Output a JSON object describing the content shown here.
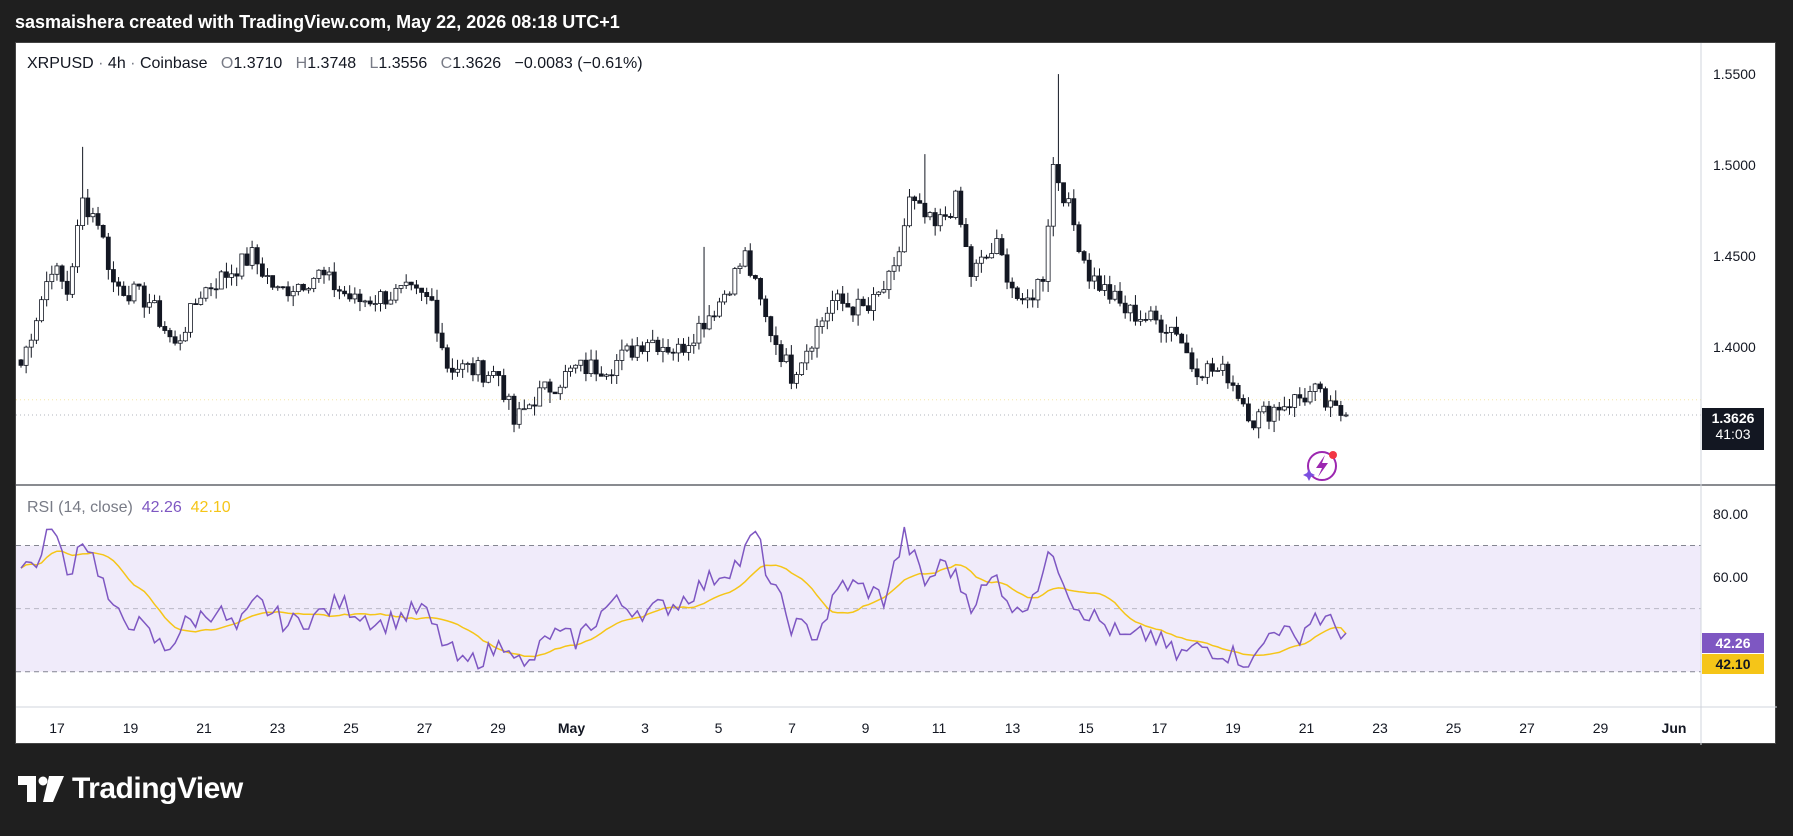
{
  "header": {
    "text": "sasmaishera created with TradingView.com, May 22, 2026 08:18 UTC+1"
  },
  "legend": {
    "symbol": "XRPUSD",
    "interval": "4h",
    "exchange": "Coinbase",
    "open_label": "O",
    "open": "1.3710",
    "high_label": "H",
    "high": "1.3748",
    "low_label": "L",
    "low": "1.3556",
    "close_label": "C",
    "close": "1.3626",
    "change": "−0.0083 (−0.61%)"
  },
  "rsi_legend": {
    "label": "RSI (14, close)",
    "value": "42.26",
    "ma": "42.10"
  },
  "price_tag": {
    "price": "1.3626",
    "countdown": "41:03"
  },
  "rsi_tags": {
    "rsi": "42.26",
    "ma": "42.10"
  },
  "brand": {
    "name": "TradingView"
  },
  "colors": {
    "up": "#ffffff",
    "down": "#131722",
    "wick": "#131722",
    "rsi_line": "#7e57c2",
    "rsi_ma": "#f5c518",
    "rsi_band": "#f0ebfa",
    "price_tag_bg": "#131722",
    "rsi_tag_bg": "#7e57c2",
    "ma_tag_bg": "#f5c518"
  },
  "chart_data": [
    {
      "type": "candlestick",
      "title": "",
      "ylim": [
        1.334,
        1.555
      ],
      "y_ticks": [
        "1.5500",
        "1.5000",
        "1.4500",
        "1.4000"
      ],
      "x_ticks": [
        "17",
        "19",
        "21",
        "23",
        "25",
        "27",
        "29",
        "May",
        "3",
        "5",
        "7",
        "9",
        "11",
        "13",
        "15",
        "17",
        "19",
        "21",
        "23",
        "25",
        "27",
        "29",
        "Jun"
      ],
      "last_close": 1.3626,
      "anchors": [
        [
          0,
          1.39
        ],
        [
          6,
          1.445
        ],
        [
          9,
          1.43
        ],
        [
          12,
          1.48
        ],
        [
          15,
          1.47
        ],
        [
          18,
          1.435
        ],
        [
          25,
          1.425
        ],
        [
          30,
          1.4
        ],
        [
          35,
          1.43
        ],
        [
          45,
          1.45
        ],
        [
          50,
          1.43
        ],
        [
          58,
          1.44
        ],
        [
          65,
          1.425
        ],
        [
          75,
          1.43
        ],
        [
          80,
          1.425
        ],
        [
          83,
          1.39
        ],
        [
          93,
          1.385
        ],
        [
          96,
          1.358
        ],
        [
          100,
          1.372
        ],
        [
          108,
          1.388
        ],
        [
          115,
          1.39
        ],
        [
          122,
          1.405
        ],
        [
          128,
          1.398
        ],
        [
          136,
          1.425
        ],
        [
          141,
          1.45
        ],
        [
          145,
          1.415
        ],
        [
          150,
          1.385
        ],
        [
          158,
          1.425
        ],
        [
          165,
          1.42
        ],
        [
          170,
          1.44
        ],
        [
          173,
          1.48
        ],
        [
          178,
          1.465
        ],
        [
          182,
          1.48
        ],
        [
          185,
          1.44
        ],
        [
          190,
          1.455
        ],
        [
          195,
          1.42
        ],
        [
          199,
          1.44
        ],
        [
          201,
          1.5
        ],
        [
          203,
          1.485
        ],
        [
          208,
          1.44
        ],
        [
          215,
          1.42
        ],
        [
          225,
          1.41
        ],
        [
          228,
          1.39
        ],
        [
          235,
          1.385
        ],
        [
          240,
          1.36
        ],
        [
          245,
          1.368
        ],
        [
          252,
          1.375
        ],
        [
          255,
          1.365
        ],
        [
          258,
          1.3626
        ]
      ],
      "spikes": [
        [
          12,
          1.51
        ],
        [
          133,
          1.455
        ],
        [
          176,
          1.506
        ],
        [
          202,
          1.55
        ]
      ],
      "candle_count": 259
    },
    {
      "type": "line",
      "title": "RSI (14, close)",
      "ylim": [
        0,
        100
      ],
      "y_ticks": [
        "80.00",
        "60.00"
      ],
      "bands": [
        30,
        50,
        70
      ],
      "series": [
        {
          "name": "RSI (14, close)",
          "last": 42.26,
          "color": "#7e57c2",
          "anchors": [
            [
              0,
              63
            ],
            [
              4,
              66
            ],
            [
              6,
              78
            ],
            [
              9,
              60
            ],
            [
              12,
              73
            ],
            [
              15,
              63
            ],
            [
              18,
              48
            ],
            [
              22,
              46
            ],
            [
              28,
              37
            ],
            [
              32,
              45
            ],
            [
              38,
              50
            ],
            [
              42,
              43
            ],
            [
              46,
              52
            ],
            [
              52,
              45
            ],
            [
              58,
              48
            ],
            [
              62,
              52
            ],
            [
              70,
              45
            ],
            [
              78,
              50
            ],
            [
              82,
              40
            ],
            [
              86,
              32
            ],
            [
              90,
              35
            ],
            [
              95,
              40
            ],
            [
              98,
              30
            ],
            [
              103,
              42
            ],
            [
              108,
              40
            ],
            [
              115,
              52
            ],
            [
              122,
              49
            ],
            [
              128,
              52
            ],
            [
              135,
              60
            ],
            [
              140,
              65
            ],
            [
              143,
              74
            ],
            [
              146,
              58
            ],
            [
              150,
              45
            ],
            [
              155,
              42
            ],
            [
              160,
              58
            ],
            [
              165,
              56
            ],
            [
              168,
              53
            ],
            [
              172,
              73
            ],
            [
              176,
              58
            ],
            [
              180,
              65
            ],
            [
              185,
              52
            ],
            [
              190,
              60
            ],
            [
              194,
              48
            ],
            [
              198,
              58
            ],
            [
              201,
              68
            ],
            [
              205,
              52
            ],
            [
              210,
              46
            ],
            [
              215,
              40
            ],
            [
              220,
              42
            ],
            [
              225,
              35
            ],
            [
              230,
              38
            ],
            [
              235,
              36
            ],
            [
              240,
              33
            ],
            [
              244,
              45
            ],
            [
              248,
              40
            ],
            [
              252,
              48
            ],
            [
              258,
              42.26
            ]
          ]
        },
        {
          "name": "RSI-based MA",
          "last": 42.1,
          "color": "#f5c518"
        }
      ]
    }
  ]
}
